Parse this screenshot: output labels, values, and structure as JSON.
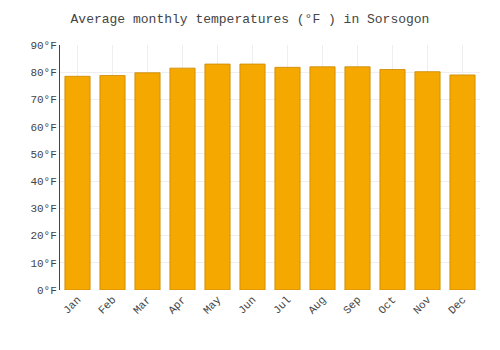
{
  "chart_data": {
    "type": "bar",
    "title": "Average monthly temperatures (°F ) in Sorsogon",
    "categories": [
      "Jan",
      "Feb",
      "Mar",
      "Apr",
      "May",
      "Jun",
      "Jul",
      "Aug",
      "Sep",
      "Oct",
      "Nov",
      "Dec"
    ],
    "values": [
      78.5,
      78.8,
      79.8,
      81.5,
      83.0,
      83.0,
      81.8,
      82.0,
      82.0,
      81.0,
      80.2,
      79.0
    ],
    "color": "#F5A800",
    "ylim": [
      0,
      90
    ],
    "yticks": [
      {
        "value": 0,
        "label": "0°F"
      },
      {
        "value": 10,
        "label": "10°F"
      },
      {
        "value": 20,
        "label": "20°F"
      },
      {
        "value": 30,
        "label": "30°F"
      },
      {
        "value": 40,
        "label": "40°F"
      },
      {
        "value": 50,
        "label": "50°F"
      },
      {
        "value": 60,
        "label": "60°F"
      },
      {
        "value": 70,
        "label": "70°F"
      },
      {
        "value": 80,
        "label": "80°F"
      },
      {
        "value": 90,
        "label": "90°F"
      }
    ],
    "grid": true
  }
}
